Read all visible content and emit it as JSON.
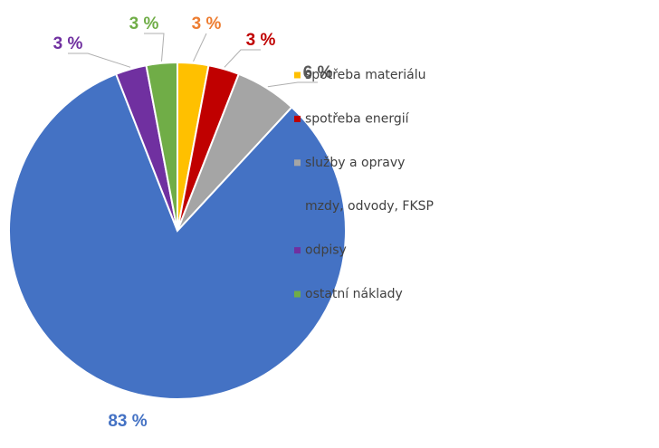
{
  "chart_data": {
    "type": "pie",
    "categories": [
      "spotřeba materiálu",
      "spotřeba energií",
      "služby a opravy",
      "mzdy, odvody, FKSP",
      "odpisy",
      "ostatní náklady"
    ],
    "values": [
      3,
      3,
      6,
      83,
      3,
      3
    ],
    "value_labels": [
      "3 %",
      "3 %",
      "6 %",
      "83 %",
      "3 %",
      "3 %"
    ],
    "colors": [
      "#ffc000",
      "#c00000",
      "#a5a5a5",
      "#4472c4",
      "#7030a0",
      "#70ad47"
    ],
    "label_colors": [
      "#ed7d31",
      "#c00000",
      "#595959",
      "#4472c4",
      "#7030a0",
      "#70ad47"
    ],
    "legend": "right"
  }
}
